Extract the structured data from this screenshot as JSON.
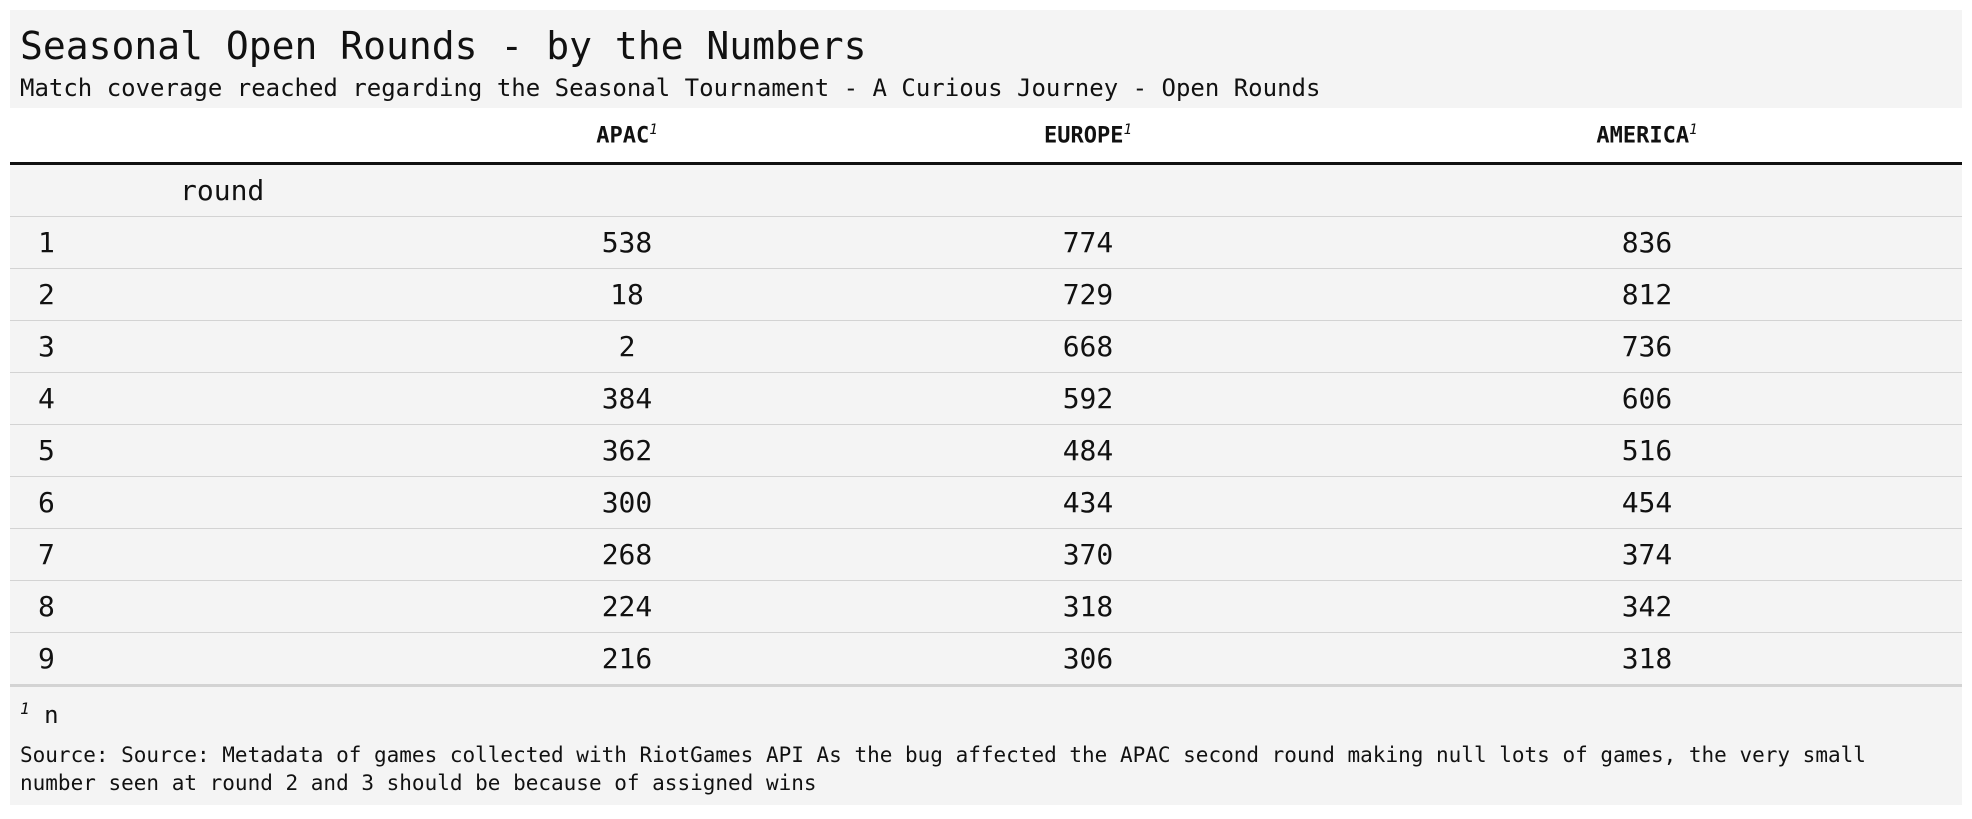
{
  "chart_data": {
    "type": "table",
    "title": "Seasonal Open Rounds - by the Numbers",
    "subtitle": "Match coverage reached regarding the Seasonal Tournament - A Curious Journey - Open Rounds",
    "group_label": "round",
    "columns": [
      {
        "label": "APAC",
        "footnote_mark": "1"
      },
      {
        "label": "EUROPE",
        "footnote_mark": "1"
      },
      {
        "label": "AMERICA",
        "footnote_mark": "1"
      }
    ],
    "rows": [
      {
        "round": "1",
        "values": [
          538,
          774,
          836
        ]
      },
      {
        "round": "2",
        "values": [
          18,
          729,
          812
        ]
      },
      {
        "round": "3",
        "values": [
          2,
          668,
          736
        ]
      },
      {
        "round": "4",
        "values": [
          384,
          592,
          606
        ]
      },
      {
        "round": "5",
        "values": [
          362,
          484,
          516
        ]
      },
      {
        "round": "6",
        "values": [
          300,
          434,
          454
        ]
      },
      {
        "round": "7",
        "values": [
          268,
          370,
          374
        ]
      },
      {
        "round": "8",
        "values": [
          224,
          318,
          342
        ]
      },
      {
        "round": "9",
        "values": [
          216,
          306,
          318
        ]
      }
    ],
    "footnote": {
      "mark": "1",
      "text": "n"
    },
    "source": "Source: Source: Metadata of games collected with RiotGames API As the bug affected the APAC second round making null lots of games, the very small number seen at round 2 and 3 should be because of assigned wins"
  }
}
